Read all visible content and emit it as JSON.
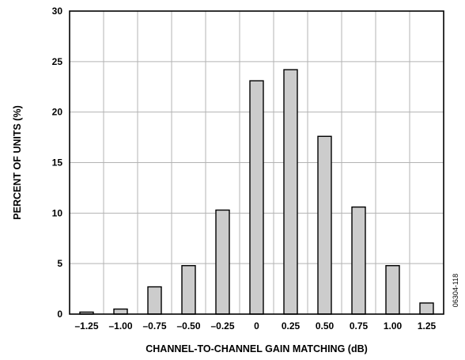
{
  "chart_data": {
    "type": "bar",
    "title": "",
    "xlabel": "CHANNEL-TO-CHANNEL GAIN MATCHING (dB)",
    "ylabel": "PERCENT OF UNITS (%)",
    "categories": [
      "–1.25",
      "–1.00",
      "–0.75",
      "–0.50",
      "–0.25",
      "0",
      "0.25",
      "0.50",
      "0.75",
      "1.00",
      "1.25"
    ],
    "values": [
      0.2,
      0.5,
      2.7,
      4.8,
      10.3,
      23.1,
      24.2,
      17.6,
      10.6,
      4.8,
      1.1
    ],
    "ylim": [
      0,
      30
    ],
    "yticks": [
      "0",
      "5",
      "10",
      "15",
      "20",
      "25",
      "30"
    ],
    "grid": true,
    "bar_color": "#cccccc",
    "bar_edge_color": "#000000"
  },
  "figure_code": "06304-118"
}
